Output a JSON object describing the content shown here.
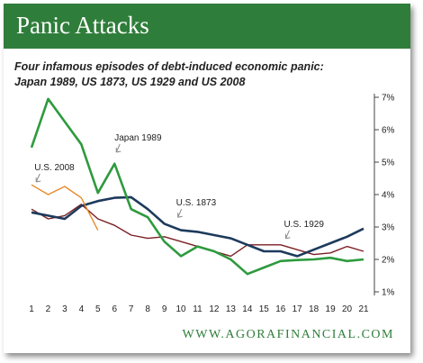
{
  "header": {
    "title": "Panic Attacks"
  },
  "subtitle": {
    "line1": "Four infamous episodes of debt-induced economic panic:",
    "line2": "Japan 1989, US 1873, US 1929 and US 2008"
  },
  "footer": {
    "source": "WWW.AGORAFINANCIAL.COM"
  },
  "chart_data": {
    "type": "line",
    "x": [
      1,
      2,
      3,
      4,
      5,
      6,
      7,
      8,
      9,
      10,
      11,
      12,
      13,
      14,
      15,
      16,
      17,
      18,
      19,
      20,
      21
    ],
    "x_tick_labels": [
      "1",
      "2",
      "3",
      "4",
      "5",
      "6",
      "7",
      "8",
      "9",
      "10",
      "11",
      "12",
      "13",
      "14",
      "15",
      "16",
      "17",
      "18",
      "19",
      "20",
      "21"
    ],
    "y_tick_labels": [
      "1%",
      "2%",
      "3%",
      "4%",
      "5%",
      "6%",
      "7%"
    ],
    "y_ticks": [
      1,
      2,
      3,
      4,
      5,
      6,
      7
    ],
    "ylim": [
      1,
      7
    ],
    "xlim": [
      1,
      21
    ],
    "y_axis_side": "right",
    "grid": false,
    "series": [
      {
        "name": "Japan 1989",
        "color": "#2e9a3e",
        "values": [
          5.45,
          6.95,
          6.25,
          5.55,
          4.05,
          4.95,
          3.55,
          3.3,
          2.55,
          2.1,
          2.4,
          2.25,
          2.0,
          1.55,
          1.75,
          1.95,
          1.98,
          2.0,
          2.05,
          1.95,
          2.0
        ]
      },
      {
        "name": "U.S. 2008",
        "color": "#e88a2a",
        "values": [
          4.3,
          4.0,
          4.25,
          3.9,
          2.9,
          null,
          null,
          null,
          null,
          null,
          null,
          null,
          null,
          null,
          null,
          null,
          null,
          null,
          null,
          null,
          null
        ]
      },
      {
        "name": "U.S. 1873",
        "color": "#1d3a5c",
        "values": [
          3.45,
          3.35,
          3.25,
          3.65,
          3.8,
          3.9,
          3.92,
          3.55,
          3.1,
          2.9,
          2.85,
          2.75,
          2.65,
          2.45,
          2.25,
          2.25,
          2.1,
          2.3,
          2.5,
          2.7,
          2.95
        ]
      },
      {
        "name": "U.S. 1929",
        "color": "#7b1f24",
        "values": [
          3.55,
          3.25,
          3.35,
          3.7,
          3.25,
          3.05,
          2.75,
          2.65,
          2.7,
          2.55,
          2.4,
          2.25,
          2.1,
          2.45,
          2.45,
          2.45,
          2.3,
          2.15,
          2.2,
          2.4,
          2.25
        ]
      }
    ],
    "annotations": [
      {
        "text": "Japan 1989",
        "x": 6,
        "y": 5.0
      },
      {
        "text": "U.S. 2008",
        "x": 1.5,
        "y": 4.25
      },
      {
        "text": "U.S. 1873",
        "x": 9.6,
        "y": 3.55
      },
      {
        "text": "U.S. 1929",
        "x": 16.2,
        "y": 2.45
      }
    ]
  }
}
